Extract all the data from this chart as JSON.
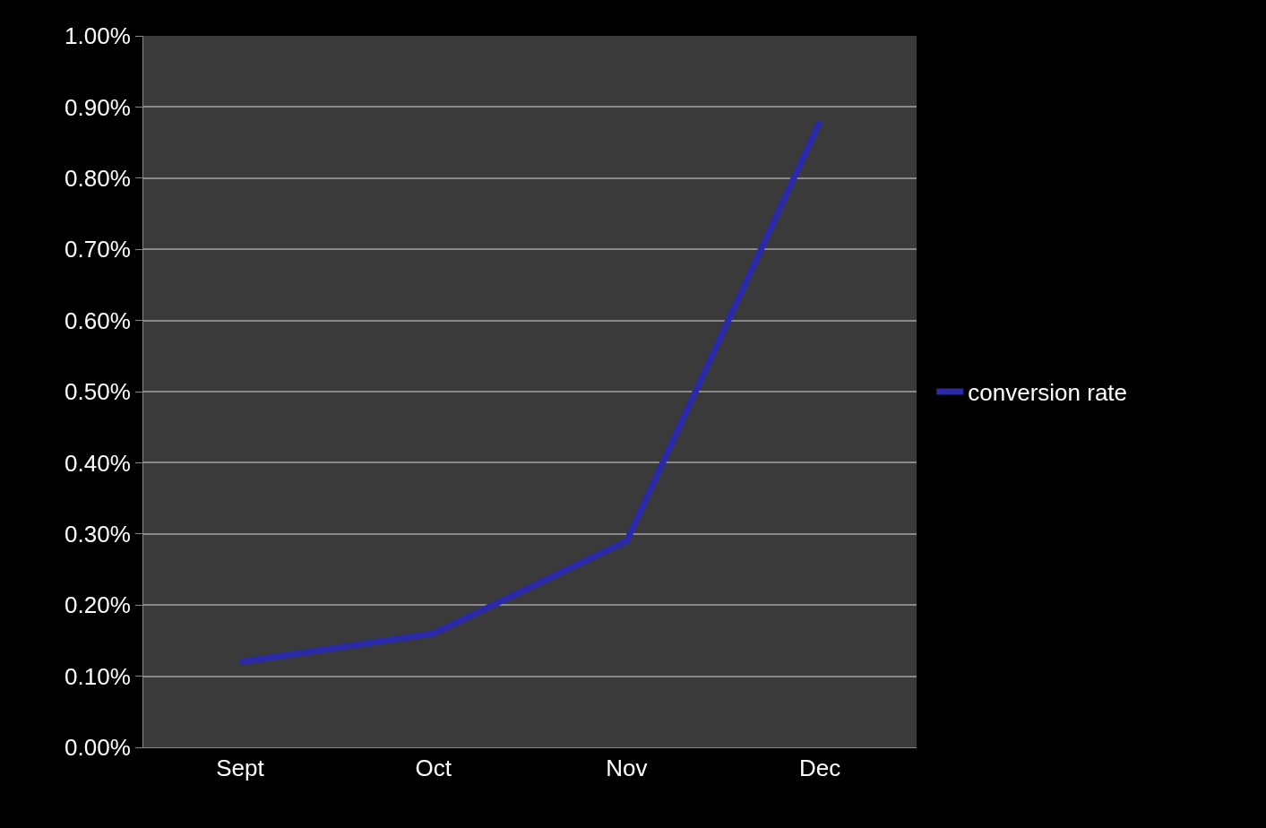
{
  "chart_data": {
    "type": "line",
    "categories": [
      "Sept",
      "Oct",
      "Nov",
      "Dec"
    ],
    "series": [
      {
        "name": "conversion rate",
        "color": "#2a2aa8",
        "values": [
          0.12,
          0.16,
          0.29,
          0.88
        ]
      }
    ],
    "ylim": [
      0,
      1
    ],
    "yticks": [
      {
        "value": 0,
        "label": "0.00%"
      },
      {
        "value": 0.1,
        "label": "0.10%"
      },
      {
        "value": 0.2,
        "label": "0.20%"
      },
      {
        "value": 0.3,
        "label": "0.30%"
      },
      {
        "value": 0.4,
        "label": "0.40%"
      },
      {
        "value": 0.5,
        "label": "0.50%"
      },
      {
        "value": 0.6,
        "label": "0.60%"
      },
      {
        "value": 0.7,
        "label": "0.70%"
      },
      {
        "value": 0.8,
        "label": "0.80%"
      },
      {
        "value": 0.9,
        "label": "0.90%"
      },
      {
        "value": 1,
        "label": "1.00%"
      }
    ],
    "grid": "y",
    "legend": "right",
    "marker": "none",
    "line_style": "solid"
  }
}
